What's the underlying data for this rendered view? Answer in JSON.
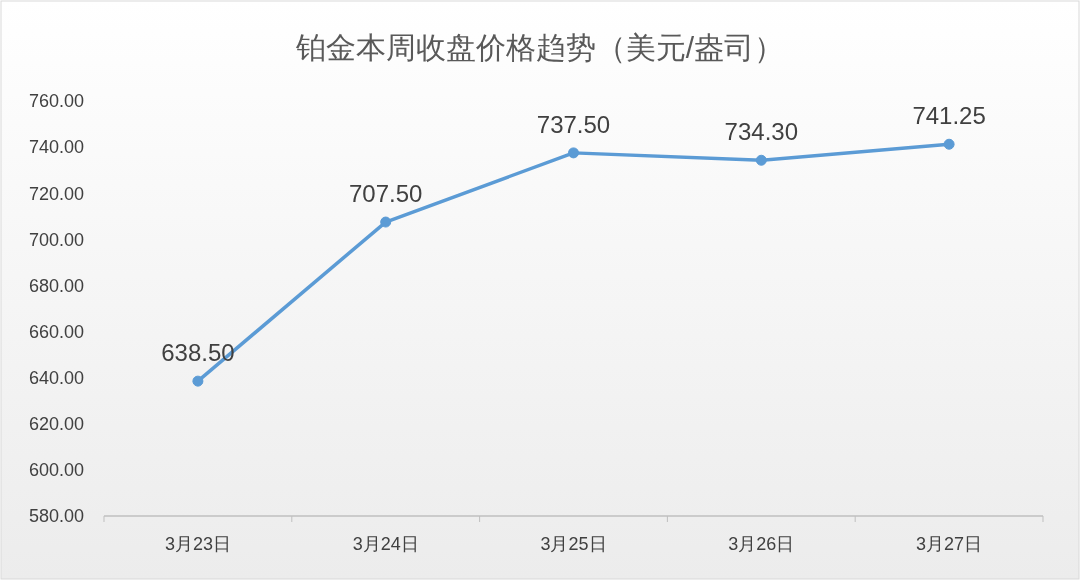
{
  "chart_data": {
    "type": "line",
    "title": "铂金本周收盘价格趋势（美元/盎司）",
    "categories": [
      "3月23日",
      "3月24日",
      "3月25日",
      "3月26日",
      "3月27日"
    ],
    "series": [
      {
        "color": "#5b9bd5",
        "values": [
          638.5,
          707.5,
          737.5,
          734.3,
          741.25
        ]
      }
    ],
    "value_labels": [
      "638.50",
      "707.50",
      "737.50",
      "734.30",
      "741.25"
    ],
    "ylim": [
      580,
      760
    ],
    "yticks": [
      {
        "value": 580,
        "label": "580.00"
      },
      {
        "value": 600,
        "label": "600.00"
      },
      {
        "value": 620,
        "label": "620.00"
      },
      {
        "value": 640,
        "label": "640.00"
      },
      {
        "value": 660,
        "label": "660.00"
      },
      {
        "value": 680,
        "label": "680.00"
      },
      {
        "value": 700,
        "label": "700.00"
      },
      {
        "value": 720,
        "label": "720.00"
      },
      {
        "value": 740,
        "label": "740.00"
      },
      {
        "value": 760,
        "label": "760.00"
      }
    ],
    "marker": "circle",
    "line_style": "solid"
  }
}
